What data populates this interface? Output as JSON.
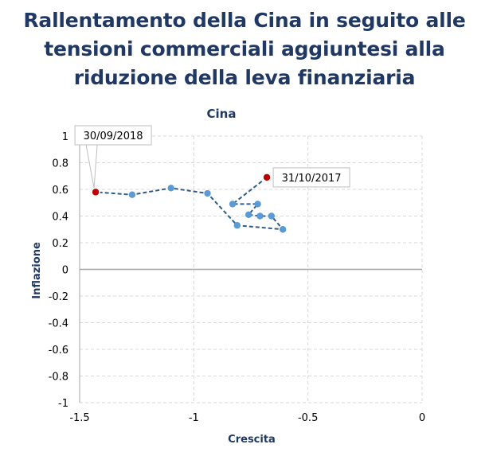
{
  "page": {
    "title": "Rallentamento della Cina in seguito alle\ntensioni commerciali aggiuntesi alla\nriduzione della leva finanziaria"
  },
  "colors": {
    "title": "#1F3864",
    "series": "#5B9BD5",
    "line": "#2E5C8A",
    "highlight": "#C00000",
    "grid": "#D9D9D9"
  },
  "chart_data": {
    "type": "scatter",
    "title": "Cina",
    "xlabel": "Crescita",
    "ylabel": "Inflazione",
    "xlim": [
      -1.5,
      0
    ],
    "ylim": [
      -1,
      1
    ],
    "xticks": [
      -1.5,
      -1,
      -0.5,
      0
    ],
    "yticks": [
      1,
      0.8,
      0.6,
      0.4,
      0.2,
      0,
      -0.2,
      -0.4,
      -0.6,
      -0.8,
      -1
    ],
    "xtick_labels": [
      "-1.5",
      "-1",
      "-0.5",
      "0"
    ],
    "ytick_labels": [
      "1",
      "0.8",
      "0.6",
      "0.4",
      "0.2",
      "0",
      "-0.2",
      "-0.4",
      "-0.6",
      "-0.8",
      "-1"
    ],
    "grid": true,
    "connected": true,
    "points": [
      {
        "x": -0.68,
        "y": 0.69,
        "highlight": true,
        "label": "31/10/2017"
      },
      {
        "x": -0.83,
        "y": 0.49
      },
      {
        "x": -0.72,
        "y": 0.49
      },
      {
        "x": -0.76,
        "y": 0.41
      },
      {
        "x": -0.71,
        "y": 0.4
      },
      {
        "x": -0.66,
        "y": 0.4
      },
      {
        "x": -0.61,
        "y": 0.3
      },
      {
        "x": -0.81,
        "y": 0.33
      },
      {
        "x": -0.94,
        "y": 0.57
      },
      {
        "x": -1.1,
        "y": 0.61
      },
      {
        "x": -1.27,
        "y": 0.56
      },
      {
        "x": -1.43,
        "y": 0.58,
        "highlight": true,
        "label": "30/09/2018"
      }
    ]
  }
}
